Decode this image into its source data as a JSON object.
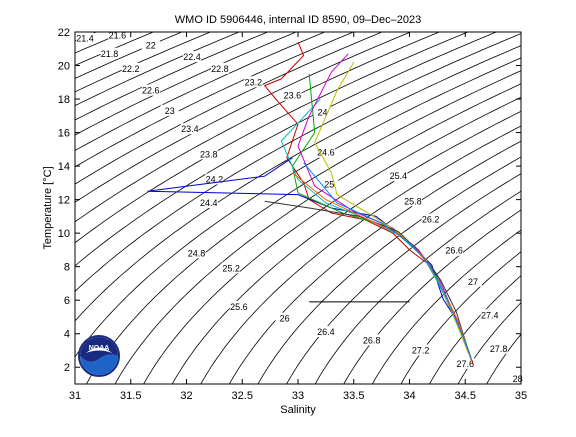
{
  "chart_data": {
    "type": "line",
    "title": "WMO ID 5906446, internal ID 8590, 09–Dec–2023",
    "xlabel": "Salinity",
    "ylabel": "Temperature [°C]",
    "xlim": [
      31,
      35
    ],
    "ylim": [
      1,
      22
    ],
    "x_ticks": [
      "31",
      "31.5",
      "32",
      "32.5",
      "33",
      "33.5",
      "34",
      "34.5",
      "35"
    ],
    "y_ticks": [
      "2",
      "4",
      "6",
      "8",
      "10",
      "12",
      "14",
      "16",
      "18",
      "20",
      "22"
    ],
    "grid": false,
    "density_contours": {
      "levels": [
        21.4,
        21.6,
        21.8,
        22,
        22.2,
        22.4,
        22.6,
        22.8,
        23,
        23.2,
        23.4,
        23.6,
        23.8,
        24,
        24.2,
        24.4,
        24.6,
        24.8,
        25,
        25.2,
        25.4,
        25.6,
        25.8,
        26,
        26.2,
        26.4,
        26.6,
        26.8,
        27,
        27.2,
        27.4,
        27.6,
        27.8,
        28
      ],
      "labels": [
        {
          "text": "21.4",
          "s": 31.09,
          "t": 21.6
        },
        {
          "text": "21.6",
          "s": 31.38,
          "t": 21.8
        },
        {
          "text": "21.8",
          "s": 31.31,
          "t": 20.7
        },
        {
          "text": "22",
          "s": 31.68,
          "t": 21.2
        },
        {
          "text": "22.2",
          "s": 31.5,
          "t": 19.8
        },
        {
          "text": "22.4",
          "s": 32.05,
          "t": 20.5
        },
        {
          "text": "22.6",
          "s": 31.68,
          "t": 18.5
        },
        {
          "text": "22.8",
          "s": 32.3,
          "t": 19.8
        },
        {
          "text": "23",
          "s": 31.85,
          "t": 17.3
        },
        {
          "text": "23.2",
          "s": 32.6,
          "t": 19.0
        },
        {
          "text": "23.4",
          "s": 32.03,
          "t": 16.2
        },
        {
          "text": "23.6",
          "s": 32.95,
          "t": 18.2
        },
        {
          "text": "23.8",
          "s": 32.2,
          "t": 14.7
        },
        {
          "text": "24",
          "s": 33.22,
          "t": 17.2
        },
        {
          "text": "24.2",
          "s": 32.25,
          "t": 13.2
        },
        {
          "text": "24.4",
          "s": 32.2,
          "t": 11.8
        },
        {
          "text": "24.6",
          "s": 33.25,
          "t": 14.8
        },
        {
          "text": "24.8",
          "s": 32.09,
          "t": 8.8
        },
        {
          "text": "25",
          "s": 33.28,
          "t": 12.9
        },
        {
          "text": "25.2",
          "s": 32.4,
          "t": 7.9
        },
        {
          "text": "25.4",
          "s": 33.9,
          "t": 13.4
        },
        {
          "text": "25.6",
          "s": 32.47,
          "t": 5.6
        },
        {
          "text": "25.8",
          "s": 34.03,
          "t": 11.9
        },
        {
          "text": "26",
          "s": 32.88,
          "t": 4.9
        },
        {
          "text": "26.2",
          "s": 34.19,
          "t": 10.8
        },
        {
          "text": "26.4",
          "s": 33.25,
          "t": 4.1
        },
        {
          "text": "26.6",
          "s": 34.4,
          "t": 8.95
        },
        {
          "text": "26.8",
          "s": 33.66,
          "t": 3.6
        },
        {
          "text": "27",
          "s": 34.57,
          "t": 7.1
        },
        {
          "text": "27.2",
          "s": 34.1,
          "t": 3.0
        },
        {
          "text": "27.4",
          "s": 34.72,
          "t": 5.1
        },
        {
          "text": "27.6",
          "s": 34.5,
          "t": 2.2
        },
        {
          "text": "27.8",
          "s": 34.8,
          "t": 3.1
        },
        {
          "text": "28",
          "s": 34.97,
          "t": 1.3
        }
      ]
    },
    "series": [
      {
        "color": "#cc0000",
        "values": [
          [
            33.0,
            21.4
          ],
          [
            33.05,
            20.6
          ],
          [
            32.85,
            19.2
          ],
          [
            32.7,
            18.8
          ],
          [
            32.8,
            18.0
          ],
          [
            33.0,
            16.5
          ],
          [
            32.9,
            14.5
          ],
          [
            33.05,
            13.0
          ],
          [
            33.1,
            12.0
          ],
          [
            33.3,
            11.2
          ],
          [
            33.6,
            10.8
          ],
          [
            33.85,
            10.0
          ],
          [
            34.0,
            9.0
          ],
          [
            34.2,
            8.0
          ],
          [
            34.3,
            6.5
          ],
          [
            34.4,
            5.0
          ],
          [
            34.5,
            3.5
          ],
          [
            34.57,
            2.2
          ]
        ]
      },
      {
        "color": "#0000cc",
        "values": [
          [
            32.95,
            14.5
          ],
          [
            32.7,
            13.4
          ],
          [
            31.65,
            12.5
          ],
          [
            33.0,
            12.3
          ],
          [
            33.3,
            11.5
          ],
          [
            33.7,
            11.0
          ],
          [
            33.95,
            9.7
          ],
          [
            34.2,
            8.1
          ],
          [
            34.3,
            6.1
          ],
          [
            34.45,
            4.5
          ],
          [
            34.55,
            2.6
          ]
        ]
      },
      {
        "color": "#00aa00",
        "values": [
          [
            33.1,
            19.5
          ],
          [
            33.15,
            16.0
          ],
          [
            32.95,
            14.0
          ],
          [
            33.0,
            12.4
          ],
          [
            33.4,
            11.2
          ],
          [
            33.8,
            10.4
          ],
          [
            34.05,
            9.2
          ],
          [
            34.22,
            7.8
          ],
          [
            34.32,
            6.2
          ],
          [
            34.45,
            4.4
          ],
          [
            34.56,
            2.4
          ]
        ]
      },
      {
        "color": "#00bbbb",
        "values": [
          [
            33.2,
            18.0
          ],
          [
            32.85,
            15.5
          ],
          [
            33.0,
            13.2
          ],
          [
            33.25,
            11.8
          ],
          [
            33.6,
            10.9
          ],
          [
            33.9,
            9.9
          ],
          [
            34.12,
            8.6
          ],
          [
            34.26,
            7.0
          ],
          [
            34.38,
            5.3
          ],
          [
            34.52,
            3.0
          ]
        ]
      },
      {
        "color": "#cc00cc",
        "values": [
          [
            33.45,
            20.7
          ],
          [
            33.3,
            19.6
          ],
          [
            33.1,
            17.0
          ],
          [
            33.0,
            15.2
          ],
          [
            33.15,
            12.8
          ],
          [
            33.5,
            11.3
          ],
          [
            33.85,
            10.3
          ],
          [
            34.08,
            9.0
          ],
          [
            34.25,
            7.5
          ],
          [
            34.36,
            5.8
          ],
          [
            34.5,
            3.6
          ]
        ]
      },
      {
        "color": "#bbbb00",
        "values": [
          [
            33.5,
            20.2
          ],
          [
            33.35,
            18.5
          ],
          [
            33.15,
            15.4
          ],
          [
            33.3,
            13.6
          ],
          [
            33.35,
            12.3
          ],
          [
            33.7,
            10.9
          ],
          [
            33.95,
            9.8
          ],
          [
            34.15,
            8.4
          ],
          [
            34.28,
            6.8
          ],
          [
            34.4,
            5.0
          ],
          [
            34.53,
            2.8
          ]
        ]
      },
      {
        "color": "#333333",
        "values": [
          [
            32.7,
            11.9
          ],
          [
            33.1,
            11.5
          ],
          [
            33.55,
            11.0
          ],
          [
            33.9,
            10.1
          ],
          [
            34.1,
            8.8
          ],
          [
            34.28,
            7.2
          ],
          [
            34.42,
            5.3
          ],
          [
            34.55,
            2.5
          ]
        ]
      },
      {
        "color": "#ff6600",
        "values": [
          [
            32.95,
            13.6
          ],
          [
            33.25,
            12.0
          ],
          [
            33.6,
            10.9
          ],
          [
            33.92,
            9.9
          ],
          [
            34.14,
            8.5
          ],
          [
            34.3,
            6.6
          ],
          [
            34.44,
            4.7
          ],
          [
            34.56,
            2.3
          ]
        ]
      },
      {
        "color": "#0088ff",
        "values": [
          [
            33.05,
            14.2
          ],
          [
            33.35,
            11.8
          ],
          [
            33.75,
            10.6
          ],
          [
            34.0,
            9.4
          ],
          [
            34.18,
            8.1
          ],
          [
            34.32,
            6.3
          ],
          [
            34.47,
            4.0
          ],
          [
            34.56,
            2.4
          ]
        ]
      },
      {
        "color": "#000000",
        "values": [
          [
            33.1,
            5.9
          ],
          [
            34.0,
            5.9
          ]
        ]
      }
    ]
  },
  "logo_text": "NOAA"
}
